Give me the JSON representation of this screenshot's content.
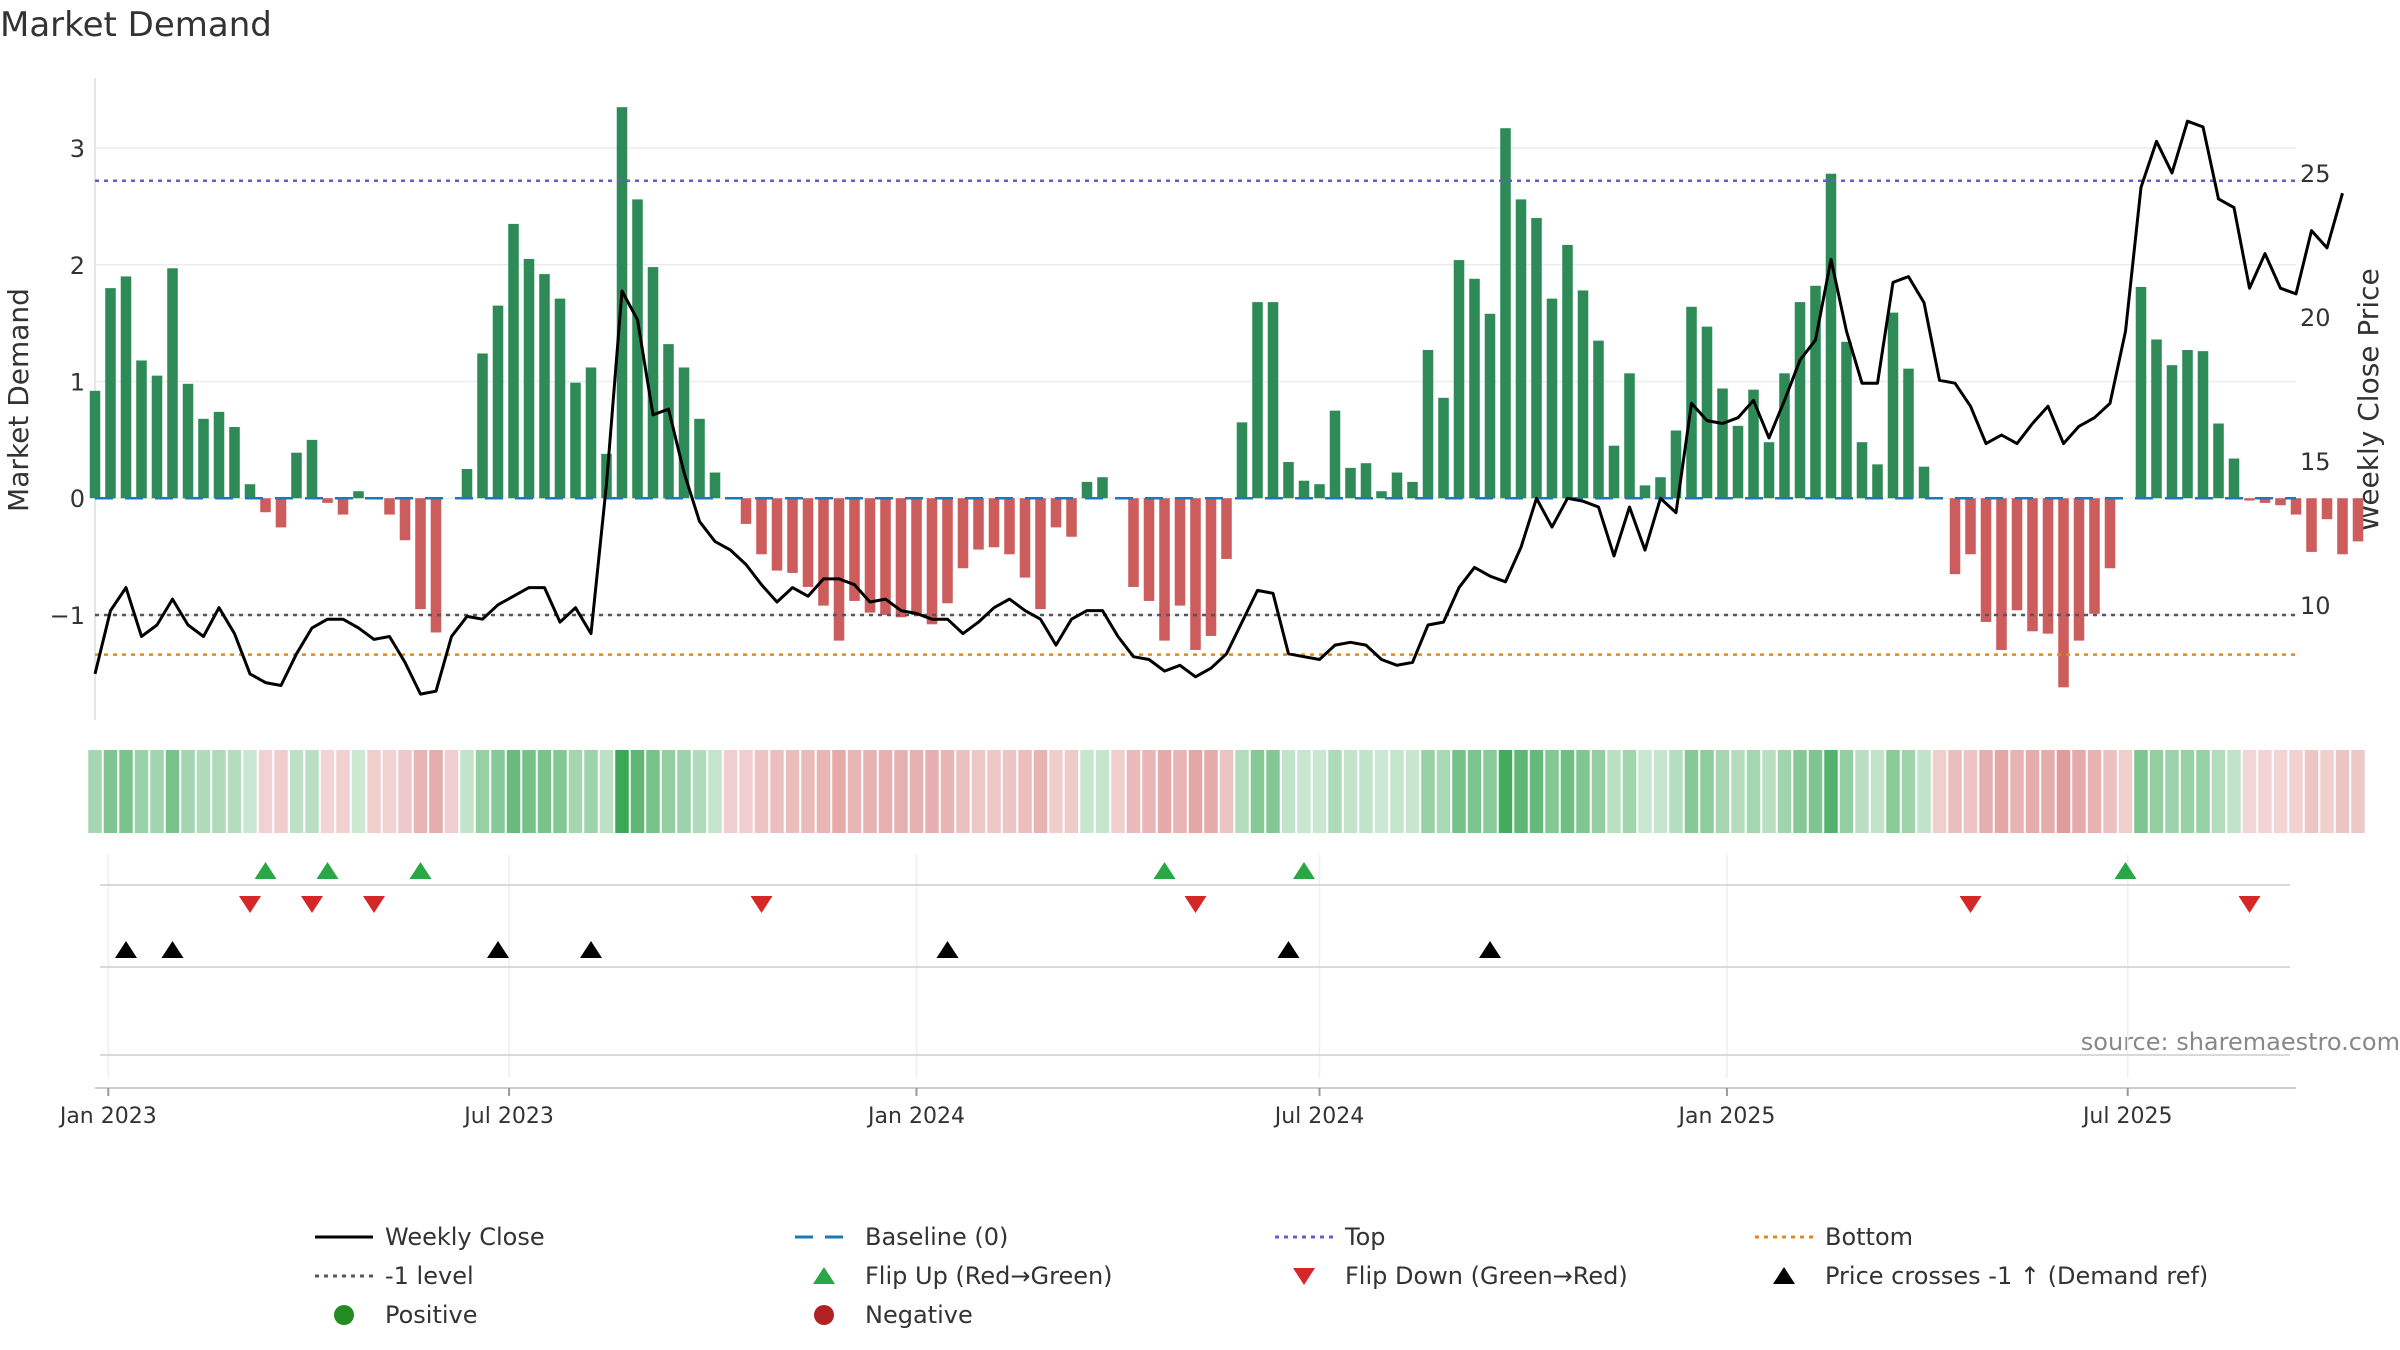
{
  "chart_data": {
    "type": "bar",
    "title": "Market Demand",
    "ylabel": "Market Demand",
    "y2label": "Weekly Close Price",
    "source": "source: sharemaestro.com",
    "ylim": [
      -1.9,
      3.6
    ],
    "y2lim": [
      6.0,
      28.3
    ],
    "yticks": [
      3,
      2,
      1,
      0,
      -1
    ],
    "ytick_labels": [
      "3",
      "2",
      "1",
      "0",
      "−1"
    ],
    "y2ticks": [
      25,
      20,
      15,
      10
    ],
    "x_range": [
      "2022-12-26",
      "2025-09-15"
    ],
    "x_ticks": [
      {
        "date": "2023-01-01",
        "label": "Jan 2023"
      },
      {
        "date": "2023-07-01",
        "label": "Jul 2023"
      },
      {
        "date": "2024-01-01",
        "label": "Jan 2024"
      },
      {
        "date": "2024-07-01",
        "label": "Jul 2024"
      },
      {
        "date": "2025-01-01",
        "label": "Jan 2025"
      },
      {
        "date": "2025-07-01",
        "label": "Jul 2025"
      }
    ],
    "reference_lines": {
      "top": 2.72,
      "minus_one": -1.0,
      "bottom": -1.34,
      "baseline": 0
    },
    "start_date": "2022-12-26",
    "interval_days": 7,
    "demand": [
      0.92,
      1.8,
      1.9,
      1.18,
      1.05,
      1.97,
      0.98,
      0.68,
      0.74,
      0.61,
      0.12,
      -0.12,
      -0.25,
      0.39,
      0.5,
      -0.04,
      -0.14,
      0.06,
      0.0,
      -0.14,
      -0.36,
      -0.95,
      -1.15,
      0.0,
      0.25,
      1.24,
      1.65,
      2.35,
      2.05,
      1.92,
      1.71,
      0.99,
      1.12,
      0.38,
      3.35,
      2.56,
      1.98,
      1.32,
      1.12,
      0.68,
      0.22,
      0.0,
      -0.22,
      -0.48,
      -0.62,
      -0.64,
      -0.76,
      -0.92,
      -1.22,
      -0.88,
      -0.98,
      -1.0,
      -1.02,
      -1.0,
      -1.08,
      -0.9,
      -0.6,
      -0.44,
      -0.42,
      -0.48,
      -0.68,
      -0.95,
      -0.25,
      -0.33,
      0.14,
      0.18,
      0.0,
      -0.76,
      -0.88,
      -1.22,
      -0.92,
      -1.3,
      -1.18,
      -0.52,
      0.65,
      1.68,
      1.68,
      0.31,
      0.15,
      0.12,
      0.75,
      0.26,
      0.3,
      0.06,
      0.22,
      0.14,
      1.27,
      0.86,
      2.04,
      1.88,
      1.58,
      3.17,
      2.56,
      2.4,
      1.71,
      2.17,
      1.78,
      1.35,
      0.45,
      1.07,
      0.11,
      0.18,
      0.58,
      1.64,
      1.47,
      0.94,
      0.62,
      0.93,
      0.48,
      1.07,
      1.68,
      1.82,
      2.78,
      1.34,
      0.48,
      0.29,
      1.59,
      1.11,
      0.27,
      0.0,
      -0.65,
      -0.48,
      -1.06,
      -1.3,
      -0.96,
      -1.14,
      -1.16,
      -1.62,
      -1.22,
      -0.99,
      -0.6,
      0.0,
      1.81,
      1.36,
      1.14,
      1.27,
      1.26,
      0.64,
      0.34,
      -0.02,
      -0.04,
      -0.06,
      -0.14,
      -0.46,
      -0.18,
      -0.48,
      -0.37
    ],
    "weekly_close": [
      7.6,
      9.8,
      10.6,
      8.9,
      9.3,
      10.2,
      9.3,
      8.9,
      9.9,
      9.0,
      7.6,
      7.3,
      7.2,
      8.3,
      9.2,
      9.5,
      9.5,
      9.2,
      8.8,
      8.9,
      8.0,
      6.9,
      7.0,
      8.9,
      9.6,
      9.5,
      10.0,
      10.3,
      10.6,
      10.6,
      9.4,
      9.9,
      9.0,
      14.2,
      20.9,
      19.9,
      16.6,
      16.8,
      14.6,
      12.9,
      12.2,
      11.9,
      11.4,
      10.7,
      10.1,
      10.6,
      10.3,
      10.9,
      10.9,
      10.7,
      10.1,
      10.2,
      9.8,
      9.7,
      9.5,
      9.5,
      9.0,
      9.4,
      9.9,
      10.2,
      9.8,
      9.5,
      8.6,
      9.5,
      9.8,
      9.8,
      8.9,
      8.2,
      8.1,
      7.7,
      7.9,
      7.5,
      7.8,
      8.3,
      9.4,
      10.5,
      10.4,
      8.3,
      8.2,
      8.1,
      8.6,
      8.7,
      8.6,
      8.1,
      7.9,
      8.0,
      9.3,
      9.4,
      10.6,
      11.3,
      11.0,
      10.8,
      12.0,
      13.7,
      12.7,
      13.7,
      13.6,
      13.4,
      11.7,
      13.4,
      11.9,
      13.7,
      13.2,
      17.0,
      16.4,
      16.3,
      16.5,
      17.1,
      15.8,
      17.1,
      18.5,
      19.2,
      22.0,
      19.5,
      17.7,
      17.7,
      21.2,
      21.4,
      20.5,
      17.8,
      17.7,
      16.9,
      15.6,
      15.9,
      15.6,
      16.3,
      16.9,
      15.6,
      16.2,
      16.5,
      17.0,
      19.5,
      24.5,
      26.1,
      25.0,
      26.8,
      26.6,
      24.1,
      23.8,
      21.0,
      22.2,
      21.0,
      20.8,
      23.0,
      22.4,
      24.3
    ],
    "flip_up_dates": [
      "2023-03-13",
      "2023-04-10",
      "2023-05-22",
      "2024-04-22",
      "2024-06-24",
      "2025-06-30"
    ],
    "flip_down_dates": [
      "2023-03-06",
      "2023-04-03",
      "2023-05-01",
      "2023-10-23",
      "2024-05-06",
      "2025-04-21",
      "2025-08-25"
    ],
    "price_cross_dates": [
      "2023-01-09",
      "2023-01-30",
      "2023-06-26",
      "2023-08-07",
      "2024-01-15",
      "2024-06-17",
      "2024-09-16"
    ],
    "legend": [
      {
        "key": "weekly-close",
        "label": "Weekly Close",
        "style": "line",
        "color": "#000000"
      },
      {
        "key": "baseline",
        "label": "Baseline (0)",
        "style": "dash",
        "color": "#1f77b4"
      },
      {
        "key": "top",
        "label": "Top",
        "style": "dot",
        "color": "#6a5acd"
      },
      {
        "key": "bottom",
        "label": "Bottom",
        "style": "dot",
        "color": "#e08a1e"
      },
      {
        "key": "minus-one",
        "label": "-1 level",
        "style": "dot",
        "color": "#555566"
      },
      {
        "key": "flip-up",
        "label": "Flip Up (Red→Green)",
        "style": "tri-up",
        "color": "#27a844"
      },
      {
        "key": "flip-down",
        "label": "Flip Down (Green→Red)",
        "style": "tri-down",
        "color": "#d62728"
      },
      {
        "key": "price-cross",
        "label": "Price crosses -1 ↑ (Demand ref)",
        "style": "tri-up",
        "color": "#000000"
      },
      {
        "key": "positive",
        "label": "Positive",
        "style": "circle",
        "color": "#228b22"
      },
      {
        "key": "negative",
        "label": "Negative",
        "style": "circle",
        "color": "#b22222"
      }
    ],
    "colors": {
      "positive": "#2e8b57",
      "negative": "#cd5c5c",
      "strip_positive": "#3aa655",
      "strip_negative": "#cc5a5a",
      "baseline": "#1f77b4",
      "top": "#6a5acd",
      "bottom": "#e08a1e",
      "minus_one": "#555566"
    }
  }
}
